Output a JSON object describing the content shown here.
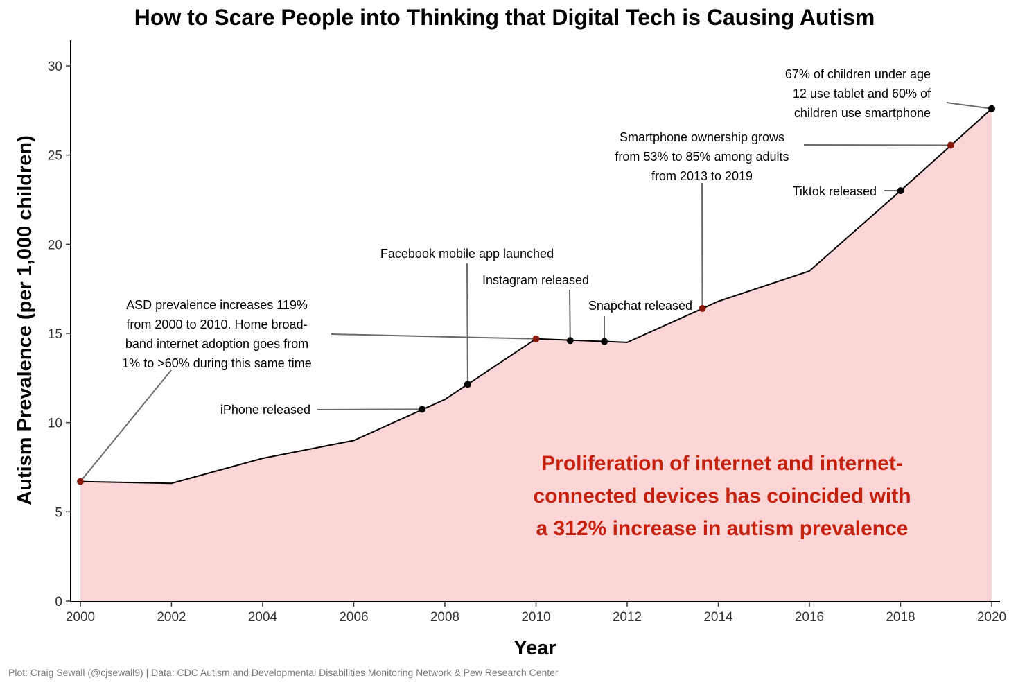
{
  "chart_data": {
    "type": "area",
    "title": "How to Scare People into Thinking that Digital Tech is Causing Autism",
    "xlabel": "Year",
    "ylabel": "Autism Prevalence (per 1,000 children)",
    "xlim": [
      2000,
      2020
    ],
    "ylim": [
      0,
      31.5
    ],
    "x_ticks": [
      "2000",
      "2002",
      "2004",
      "2006",
      "2008",
      "2010",
      "2012",
      "2014",
      "2016",
      "2018",
      "2020"
    ],
    "y_ticks": [
      "0",
      "5",
      "10",
      "15",
      "20",
      "25",
      "30"
    ],
    "grid": false,
    "series": [
      {
        "x": [
          2000,
          2002,
          2004,
          2006,
          2008,
          2010,
          2012,
          2014,
          2016,
          2018,
          2020
        ],
        "y": [
          6.7,
          6.6,
          8.0,
          9.0,
          11.3,
          14.7,
          14.5,
          16.8,
          18.5,
          23.0,
          27.6
        ]
      }
    ],
    "colors": {
      "fill": "#fcd6d6",
      "line": "#000000",
      "marker_event": "#000000",
      "marker_highlight": "#8b1a10",
      "callout_text": "#c4200f"
    },
    "events": [
      {
        "x": 2000,
        "y": 6.7,
        "marker": "highlight",
        "label": [
          "ASD prevalence increases 119%",
          "from 2000 to 2010. Home broad-",
          "band internet adoption goes from",
          "1% to >60% during this same time"
        ]
      },
      {
        "x": 2007.5,
        "y": 10.75,
        "marker": "event",
        "label": [
          "iPhone released"
        ]
      },
      {
        "x": 2008.5,
        "y": 12.15,
        "marker": "event",
        "label": [
          "Facebook mobile app launched"
        ]
      },
      {
        "x": 2010,
        "y": 14.7,
        "marker": "highlight",
        "label": []
      },
      {
        "x": 2010.75,
        "y": 14.6,
        "marker": "event",
        "label": [
          "Instagram released"
        ]
      },
      {
        "x": 2011.5,
        "y": 14.55,
        "marker": "event",
        "label": [
          "Snapchat released"
        ]
      },
      {
        "x": 2013.65,
        "y": 16.4,
        "marker": "highlight",
        "label": [
          "Smartphone ownership grows",
          "from 53% to 85% among adults",
          "from 2013 to 2019"
        ]
      },
      {
        "x": 2018,
        "y": 23.0,
        "marker": "event",
        "label": [
          "Tiktok released"
        ]
      },
      {
        "x": 2019.1,
        "y": 25.55,
        "marker": "highlight",
        "label": []
      },
      {
        "x": 2020,
        "y": 27.6,
        "marker": "event",
        "label": [
          "67% of children under age",
          "12 use tablet and 60% of",
          "children use smartphone"
        ]
      }
    ],
    "callout": [
      "Proliferation of internet and internet-",
      "connected devices has coincided with",
      "a 312% increase in autism prevalence"
    ],
    "caption": "Plot: Craig Sewall (@cjsewall9) | Data: CDC Autism and Developmental Disabilities Monitoring Network & Pew Research Center"
  }
}
